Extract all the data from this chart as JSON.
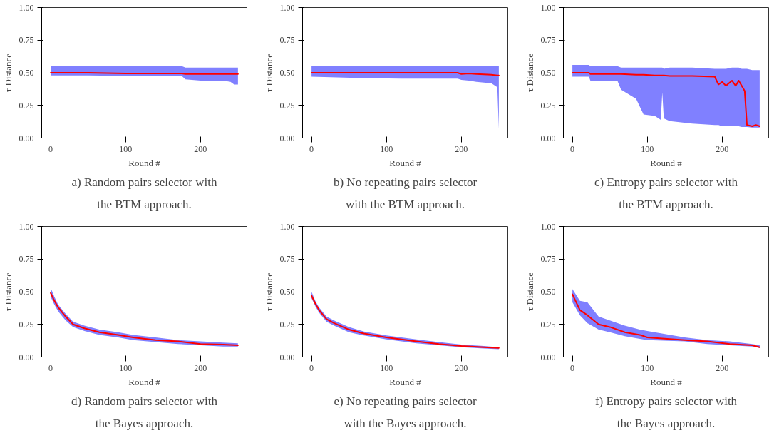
{
  "chart_data": [
    {
      "type": "line",
      "title": "a) Random pairs selector with the BTM approach.",
      "xlabel": "Round #",
      "ylabel": "τ Distance",
      "xlim": [
        -12,
        262
      ],
      "ylim": [
        0,
        1
      ],
      "xticks": [
        0,
        100,
        200
      ],
      "yticks": [
        {
          "value": 0,
          "label": "0.00"
        },
        {
          "value": 0.25,
          "label": "0.25"
        },
        {
          "value": 0.5,
          "label": "0.50"
        },
        {
          "value": 0.75,
          "label": "0.75"
        },
        {
          "value": 1,
          "label": "1.00"
        }
      ],
      "grid": false,
      "series": [
        {
          "color": "#ff0000",
          "x": [
            0,
            50,
            100,
            150,
            175,
            180,
            200,
            230,
            240,
            245,
            250
          ],
          "values": [
            0.5,
            0.5,
            0.495,
            0.495,
            0.495,
            0.49,
            0.49,
            0.49,
            0.49,
            0.49,
            0.49
          ],
          "lower": [
            0.48,
            0.48,
            0.475,
            0.475,
            0.475,
            0.45,
            0.44,
            0.44,
            0.43,
            0.41,
            0.41
          ],
          "upper": [
            0.55,
            0.55,
            0.55,
            0.55,
            0.55,
            0.54,
            0.54,
            0.54,
            0.54,
            0.54,
            0.54
          ]
        }
      ]
    },
    {
      "type": "line",
      "title": "b) No repeating pairs selector with the BTM approach.",
      "xlabel": "Round #",
      "ylabel": "τ Distance",
      "xlim": [
        -12,
        262
      ],
      "ylim": [
        0,
        1
      ],
      "xticks": [
        0,
        100,
        200
      ],
      "yticks": [
        {
          "value": 0,
          "label": "0.00"
        },
        {
          "value": 0.25,
          "label": "0.25"
        },
        {
          "value": 0.5,
          "label": "0.50"
        },
        {
          "value": 0.75,
          "label": "0.75"
        },
        {
          "value": 1,
          "label": "1.00"
        }
      ],
      "grid": false,
      "series": [
        {
          "color": "#ff0000",
          "x": [
            0,
            60,
            120,
            160,
            195,
            200,
            210,
            220,
            240,
            248,
            250
          ],
          "values": [
            0.5,
            0.5,
            0.5,
            0.5,
            0.5,
            0.49,
            0.495,
            0.49,
            0.485,
            0.48,
            0.48
          ],
          "lower": [
            0.47,
            0.46,
            0.455,
            0.455,
            0.455,
            0.445,
            0.44,
            0.43,
            0.42,
            0.39,
            0.07
          ],
          "upper": [
            0.55,
            0.55,
            0.55,
            0.55,
            0.55,
            0.55,
            0.55,
            0.55,
            0.55,
            0.55,
            0.55
          ]
        }
      ]
    },
    {
      "type": "line",
      "title": "c) Entropy pairs selector with the BTM approach.",
      "xlabel": "Round #",
      "ylabel": "τ Distance",
      "xlim": [
        -12,
        262
      ],
      "ylim": [
        0,
        1
      ],
      "xticks": [
        0,
        100,
        200
      ],
      "yticks": [
        {
          "value": 0,
          "label": "0.00"
        },
        {
          "value": 0.25,
          "label": "0.25"
        },
        {
          "value": 0.5,
          "label": "0.50"
        },
        {
          "value": 0.75,
          "label": "0.75"
        },
        {
          "value": 1,
          "label": "1.00"
        }
      ],
      "grid": false,
      "series": [
        {
          "color": "#ff0000",
          "x": [
            0,
            22,
            24,
            60,
            65,
            85,
            90,
            95,
            110,
            118,
            120,
            122,
            130,
            160,
            190,
            195,
            200,
            205,
            213,
            218,
            222,
            226,
            230,
            233,
            240,
            245,
            250
          ],
          "values": [
            0.5,
            0.5,
            0.49,
            0.49,
            0.49,
            0.485,
            0.485,
            0.485,
            0.48,
            0.48,
            0.48,
            0.48,
            0.475,
            0.475,
            0.47,
            0.41,
            0.43,
            0.4,
            0.44,
            0.4,
            0.44,
            0.4,
            0.36,
            0.1,
            0.09,
            0.1,
            0.09
          ],
          "lower": [
            0.47,
            0.47,
            0.44,
            0.44,
            0.37,
            0.3,
            0.24,
            0.18,
            0.17,
            0.14,
            0.35,
            0.15,
            0.13,
            0.11,
            0.1,
            0.1,
            0.09,
            0.09,
            0.09,
            0.09,
            0.09,
            0.085,
            0.085,
            0.085,
            0.08,
            0.08,
            0.08
          ],
          "upper": [
            0.56,
            0.56,
            0.55,
            0.55,
            0.54,
            0.54,
            0.54,
            0.54,
            0.54,
            0.54,
            0.54,
            0.53,
            0.54,
            0.54,
            0.53,
            0.53,
            0.53,
            0.53,
            0.54,
            0.54,
            0.54,
            0.53,
            0.53,
            0.53,
            0.52,
            0.52,
            0.52
          ]
        }
      ]
    },
    {
      "type": "line",
      "title": "d) Random pairs selector with the Bayes approach.",
      "xlabel": "Round #",
      "ylabel": "τ Distance",
      "xlim": [
        -12,
        262
      ],
      "ylim": [
        0,
        1
      ],
      "xticks": [
        0,
        100,
        200
      ],
      "yticks": [
        {
          "value": 0,
          "label": "0.00"
        },
        {
          "value": 0.25,
          "label": "0.25"
        },
        {
          "value": 0.5,
          "label": "0.50"
        },
        {
          "value": 0.75,
          "label": "0.75"
        },
        {
          "value": 1,
          "label": "1.00"
        }
      ],
      "grid": false,
      "series": [
        {
          "color": "#ff0000",
          "x": [
            0,
            5,
            10,
            20,
            30,
            45,
            65,
            90,
            110,
            140,
            170,
            200,
            230,
            250
          ],
          "values": [
            0.49,
            0.43,
            0.38,
            0.31,
            0.25,
            0.22,
            0.19,
            0.17,
            0.15,
            0.13,
            0.12,
            0.1,
            0.095,
            0.09
          ],
          "lower": [
            0.46,
            0.4,
            0.35,
            0.28,
            0.23,
            0.2,
            0.17,
            0.15,
            0.13,
            0.115,
            0.1,
            0.09,
            0.08,
            0.08
          ],
          "upper": [
            0.53,
            0.46,
            0.4,
            0.33,
            0.27,
            0.24,
            0.21,
            0.19,
            0.17,
            0.15,
            0.13,
            0.12,
            0.11,
            0.105
          ]
        }
      ]
    },
    {
      "type": "line",
      "title": "e) No repeating pairs selector with the Bayes approach.",
      "xlabel": "Round #",
      "ylabel": "τ Distance",
      "xlim": [
        -12,
        262
      ],
      "ylim": [
        0,
        1
      ],
      "xticks": [
        0,
        100,
        200
      ],
      "yticks": [
        {
          "value": 0,
          "label": "0.00"
        },
        {
          "value": 0.25,
          "label": "0.25"
        },
        {
          "value": 0.5,
          "label": "0.50"
        },
        {
          "value": 0.75,
          "label": "0.75"
        },
        {
          "value": 1,
          "label": "1.00"
        }
      ],
      "grid": false,
      "series": [
        {
          "color": "#ff0000",
          "x": [
            0,
            5,
            10,
            20,
            30,
            50,
            70,
            100,
            140,
            170,
            200,
            230,
            250
          ],
          "values": [
            0.47,
            0.41,
            0.36,
            0.29,
            0.26,
            0.21,
            0.18,
            0.15,
            0.12,
            0.1,
            0.085,
            0.075,
            0.07
          ],
          "lower": [
            0.45,
            0.39,
            0.34,
            0.27,
            0.24,
            0.19,
            0.165,
            0.135,
            0.105,
            0.09,
            0.075,
            0.065,
            0.06
          ],
          "upper": [
            0.5,
            0.43,
            0.38,
            0.31,
            0.28,
            0.23,
            0.195,
            0.165,
            0.135,
            0.115,
            0.095,
            0.085,
            0.075
          ]
        }
      ]
    },
    {
      "type": "line",
      "title": "f) Entropy pairs selector with the Bayes approach.",
      "xlabel": "Round #",
      "ylabel": "τ Distance",
      "xlim": [
        -12,
        262
      ],
      "ylim": [
        0,
        1
      ],
      "xticks": [
        0,
        100,
        200
      ],
      "yticks": [
        {
          "value": 0,
          "label": "0.00"
        },
        {
          "value": 0.25,
          "label": "0.25"
        },
        {
          "value": 0.5,
          "label": "0.50"
        },
        {
          "value": 0.75,
          "label": "0.75"
        },
        {
          "value": 1,
          "label": "1.00"
        }
      ],
      "grid": false,
      "series": [
        {
          "color": "#ff0000",
          "x": [
            0,
            10,
            20,
            35,
            50,
            70,
            90,
            100,
            150,
            180,
            210,
            240,
            250
          ],
          "values": [
            0.48,
            0.36,
            0.32,
            0.25,
            0.23,
            0.19,
            0.17,
            0.15,
            0.13,
            0.12,
            0.1,
            0.09,
            0.075
          ],
          "lower": [
            0.42,
            0.32,
            0.26,
            0.21,
            0.19,
            0.16,
            0.14,
            0.13,
            0.12,
            0.1,
            0.09,
            0.08,
            0.07
          ],
          "upper": [
            0.52,
            0.43,
            0.42,
            0.31,
            0.28,
            0.24,
            0.21,
            0.2,
            0.15,
            0.13,
            0.12,
            0.1,
            0.09
          ]
        }
      ]
    }
  ]
}
